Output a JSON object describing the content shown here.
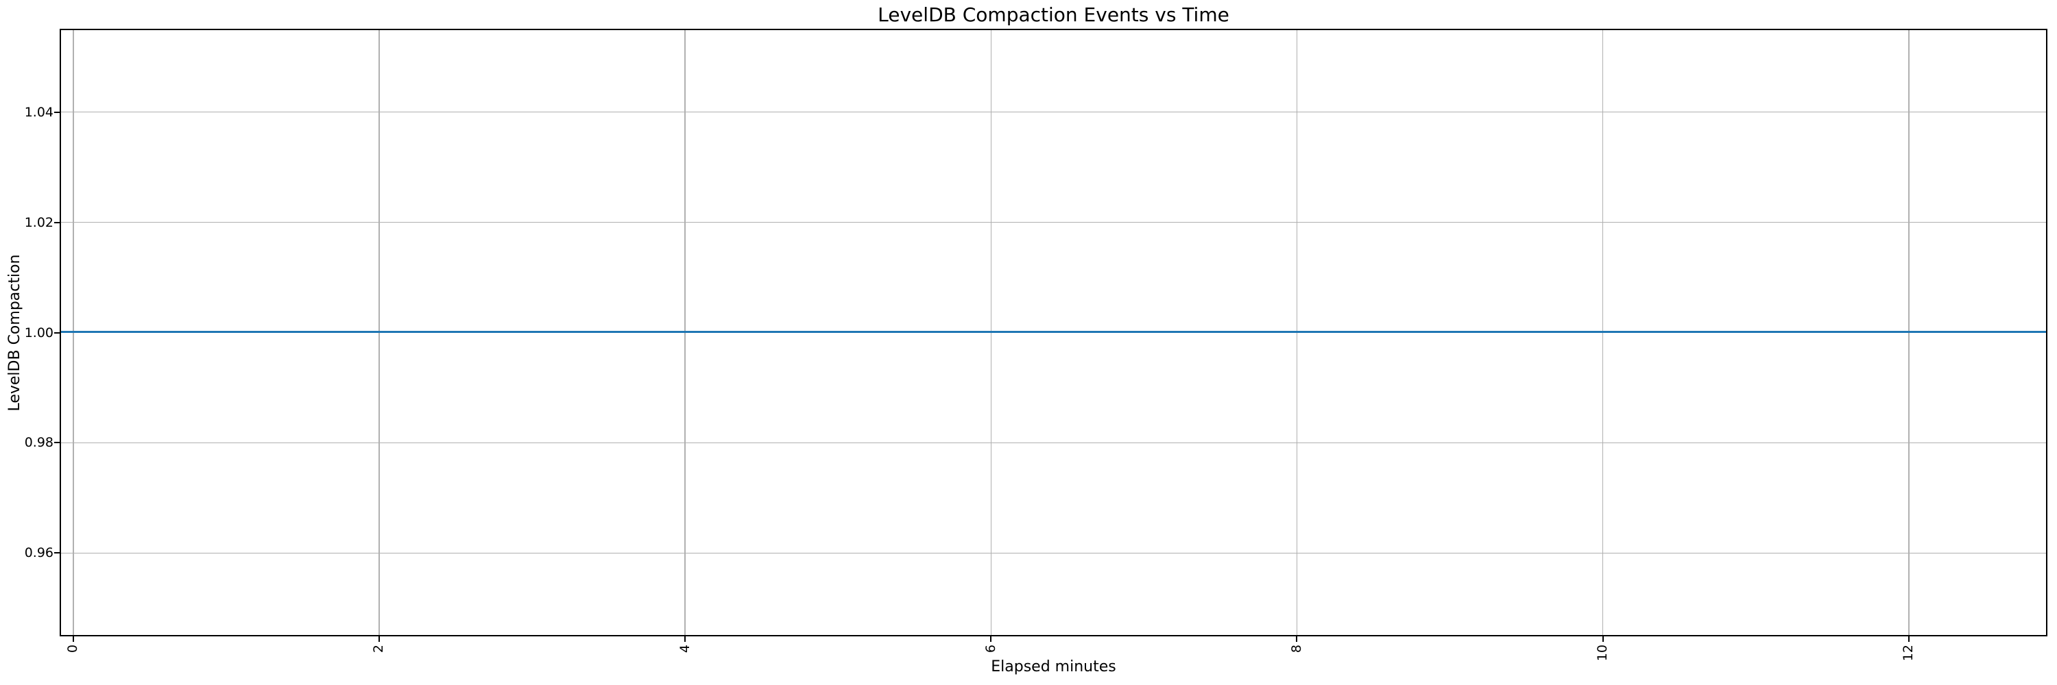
{
  "chart_data": {
    "type": "line",
    "title": "LevelDB Compaction Events vs Time",
    "xlabel": "Elapsed minutes",
    "ylabel": "LevelDB Compaction",
    "series": [
      {
        "name": "LevelDB Compaction",
        "x": [
          0,
          12.9
        ],
        "values": [
          1.0,
          1.0
        ],
        "color": "#1f77b4"
      }
    ],
    "xlim": [
      -0.084,
      12.902
    ],
    "ylim": [
      0.945,
      1.055
    ],
    "xticks": {
      "values": [
        0,
        2,
        4,
        6,
        8,
        10,
        12
      ],
      "labels": [
        "0",
        "2",
        "4",
        "6",
        "8",
        "10",
        "12"
      ],
      "rotation": 90
    },
    "yticks": {
      "values": [
        0.96,
        0.98,
        1.0,
        1.02,
        1.04
      ],
      "labels": [
        "0.96",
        "0.98",
        "1.00",
        "1.02",
        "1.04"
      ],
      "rotation": 0
    },
    "grid": true,
    "legend": null,
    "colors": {
      "line": "#1f77b4",
      "grid": "#b0b0b0",
      "spine": "#000000",
      "background": "#ffffff",
      "text": "#000000"
    }
  }
}
